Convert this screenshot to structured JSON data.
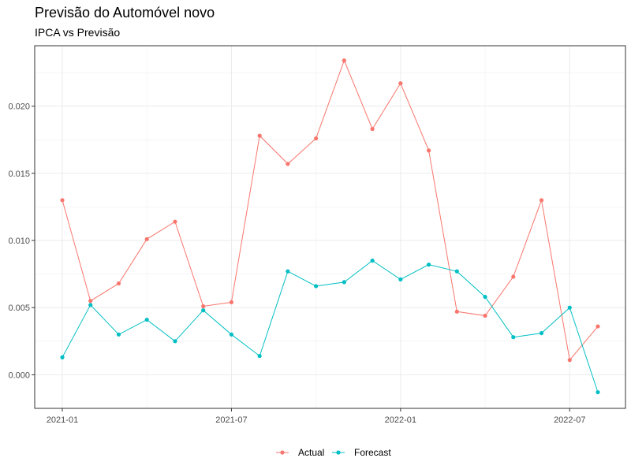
{
  "chart_data": {
    "type": "line",
    "title": "Previsão do Automóvel novo",
    "subtitle": "IPCA vs Previsão",
    "xlabel": "",
    "ylabel": "",
    "x": [
      "2021-01",
      "2021-02",
      "2021-03",
      "2021-04",
      "2021-05",
      "2021-06",
      "2021-07",
      "2021-08",
      "2021-09",
      "2021-10",
      "2021-11",
      "2021-12",
      "2022-01",
      "2022-02",
      "2022-03",
      "2022-04",
      "2022-05",
      "2022-06",
      "2022-07",
      "2022-08"
    ],
    "x_ticks": [
      "2021-01",
      "2021-07",
      "2022-01",
      "2022-07"
    ],
    "y_ticks": [
      "0.000",
      "0.005",
      "0.010",
      "0.015",
      "0.020"
    ],
    "ylim": [
      -0.0025,
      0.0245
    ],
    "grid": true,
    "legend_position": "bottom",
    "series": [
      {
        "name": "Actual",
        "color": "#F8766D",
        "values": [
          0.013,
          0.0055,
          0.0068,
          0.0101,
          0.0114,
          0.0051,
          0.0054,
          0.0178,
          0.0157,
          0.0176,
          0.0234,
          0.0183,
          0.0217,
          0.0167,
          0.0047,
          0.0044,
          0.0073,
          0.013,
          0.0011,
          0.0036
        ]
      },
      {
        "name": "Forecast",
        "color": "#00BFC4",
        "values": [
          0.0013,
          0.0052,
          0.003,
          0.0041,
          0.0025,
          0.0048,
          0.003,
          0.0014,
          0.0077,
          0.0066,
          0.0069,
          0.0085,
          0.0071,
          0.0082,
          0.0077,
          0.0058,
          0.0028,
          0.0031,
          0.005,
          -0.0013
        ]
      }
    ]
  }
}
